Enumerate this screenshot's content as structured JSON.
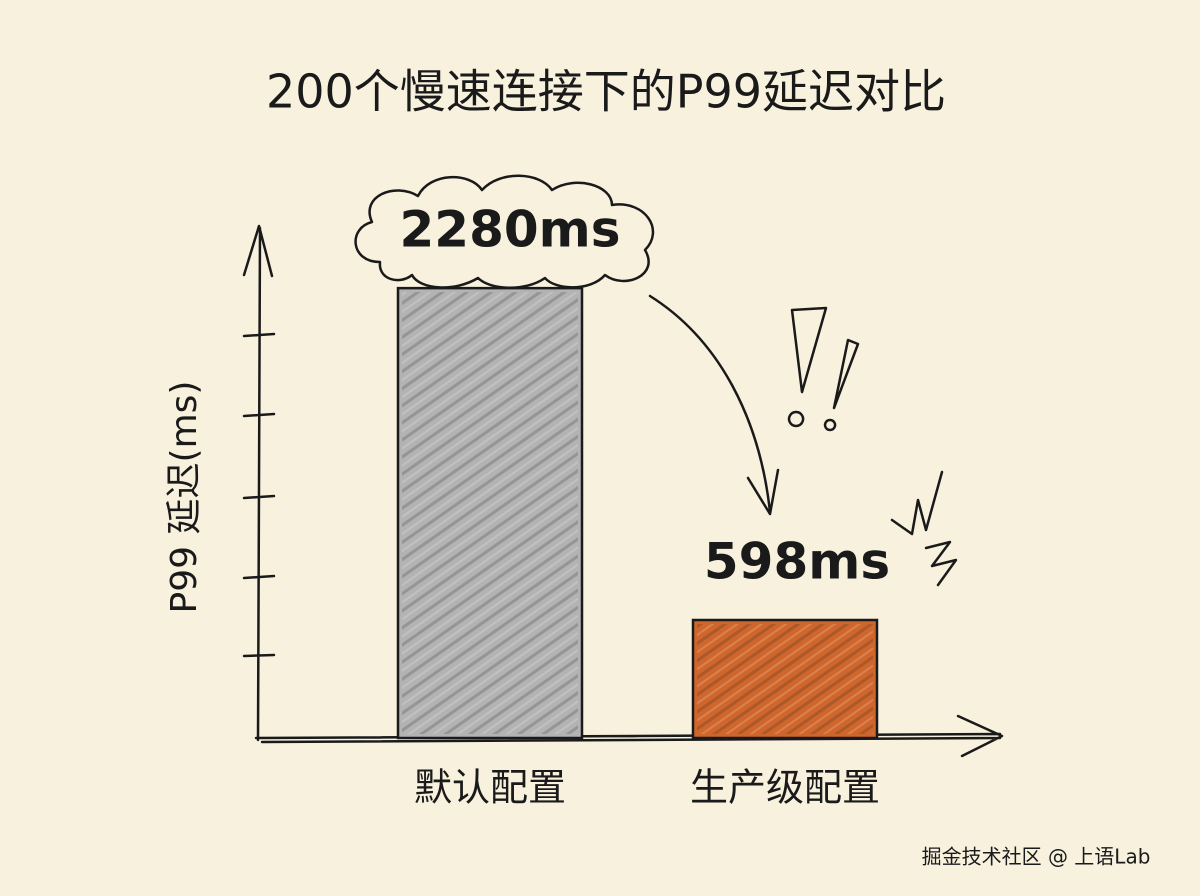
{
  "chart_data": {
    "type": "bar",
    "title": "200个慢速连接下的P99延迟对比",
    "y_label": "P99 延迟(ms)",
    "categories": [
      "默认配置",
      "生产级配置"
    ],
    "values": [
      2280,
      598
    ],
    "value_labels": [
      "2280ms",
      "598ms"
    ],
    "colors": [
      "#b3b3b3",
      "#d0662c"
    ],
    "ylim": [
      0,
      2600
    ]
  },
  "watermark": "掘金技术社区 @ 上语Lab"
}
